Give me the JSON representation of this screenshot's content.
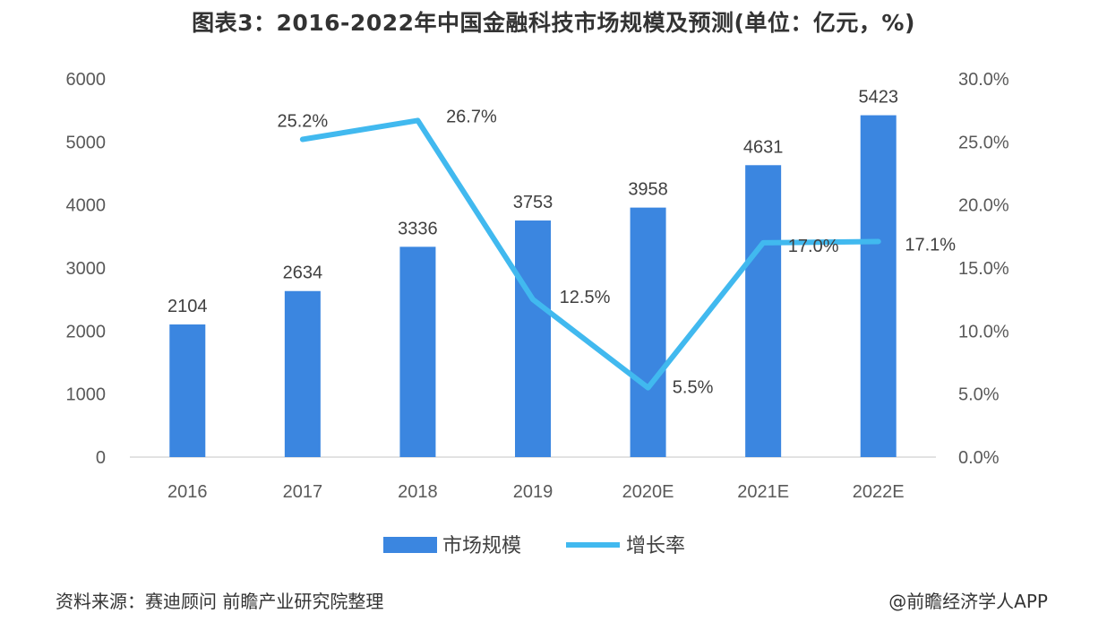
{
  "title": "图表3：2016-2022年中国金融科技市场规模及预测(单位：亿元，%)",
  "source": "资料来源：赛迪顾问 前瞻产业研究院整理",
  "credit": "@前瞻经济学人APP",
  "colors": {
    "bar": "#3b86e0",
    "line": "#41b9ef",
    "axis": "#d9d9d9"
  },
  "chart_data": {
    "type": "bar",
    "categories": [
      "2016",
      "2017",
      "2018",
      "2019",
      "2020E",
      "2021E",
      "2022E"
    ],
    "series": [
      {
        "name": "市场规模",
        "type": "bar",
        "axis": "left",
        "values": [
          2104,
          2634,
          3336,
          3753,
          3958,
          4631,
          5423
        ],
        "labels": [
          "2104",
          "2634",
          "3336",
          "3753",
          "3958",
          "4631",
          "5423"
        ]
      },
      {
        "name": "增长率",
        "type": "line",
        "axis": "right",
        "values": [
          null,
          25.2,
          26.7,
          12.5,
          5.5,
          17.0,
          17.1
        ],
        "labels": [
          "",
          "25.2%",
          "26.7%",
          "12.5%",
          "5.5%",
          "17.0%",
          "17.1%"
        ]
      }
    ],
    "y_left": {
      "min": 0,
      "max": 6000,
      "ticks": [
        "0",
        "1000",
        "2000",
        "3000",
        "4000",
        "5000",
        "6000"
      ]
    },
    "y_right": {
      "min": 0,
      "max": 30,
      "ticks": [
        "0.0%",
        "5.0%",
        "10.0%",
        "15.0%",
        "20.0%",
        "25.0%",
        "30.0%"
      ]
    },
    "legend": {
      "position": "bottom",
      "items": [
        "市场规模",
        "增长率"
      ]
    },
    "grid": false
  }
}
